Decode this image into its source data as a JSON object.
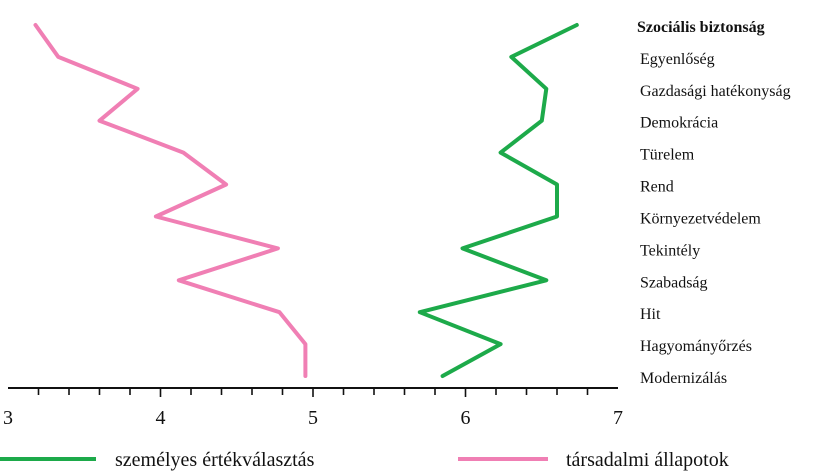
{
  "chart_data": {
    "type": "line",
    "orientation": "horizontal-values",
    "title": "",
    "xlabel": "",
    "ylabel": "",
    "xlim": [
      3,
      7
    ],
    "x_ticks": [
      "3",
      "4",
      "5",
      "6",
      "7"
    ],
    "grid": false,
    "legend_position": "bottom",
    "categories": [
      {
        "label": "Szociális biztonság",
        "bold": true
      },
      {
        "label": "Egyenlőség",
        "bold": false
      },
      {
        "label": "Gazdasági hatékonyság",
        "bold": false
      },
      {
        "label": "Demokrácia",
        "bold": false
      },
      {
        "label": "Türelem",
        "bold": false
      },
      {
        "label": "Rend",
        "bold": false
      },
      {
        "label": "Környezetvédelem",
        "bold": false
      },
      {
        "label": "Tekintély",
        "bold": false
      },
      {
        "label": "Szabadság",
        "bold": false
      },
      {
        "label": "Hit",
        "bold": false
      },
      {
        "label": "Hagyományőrzés",
        "bold": false
      },
      {
        "label": "Modernizálás",
        "bold": false
      }
    ],
    "series": [
      {
        "name": "személyes értékválasztás",
        "color": "#1daa4a",
        "values": [
          6.73,
          6.3,
          6.53,
          6.5,
          6.23,
          6.6,
          6.6,
          5.98,
          6.53,
          5.7,
          6.23,
          5.85
        ]
      },
      {
        "name": "társadalmi állapotok",
        "color": "#f07fb4",
        "values": [
          3.18,
          3.33,
          3.85,
          3.6,
          4.15,
          4.43,
          3.97,
          4.77,
          4.12,
          4.78,
          4.95,
          4.95
        ]
      }
    ]
  }
}
